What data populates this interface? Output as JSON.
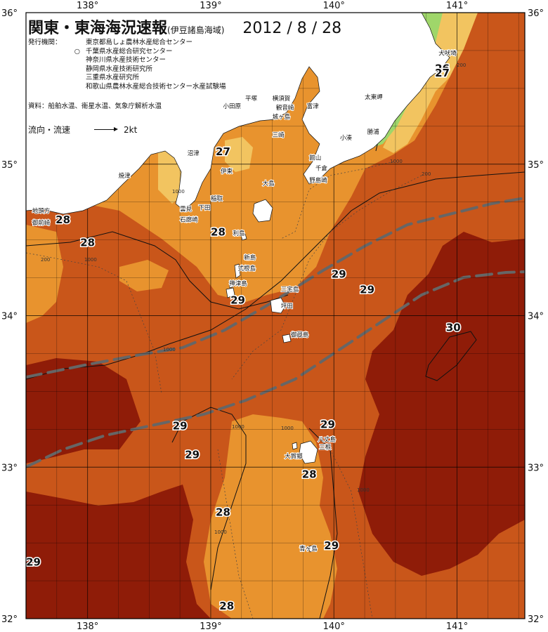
{
  "title": "関東・東海海況速報",
  "subtitle": "(伊豆諸島海域)",
  "date": "2012 / 8 / 28",
  "organizations_label": "発行機関：",
  "organizations": [
    "東京都島しょ農林水産総合センター",
    "千葉県水産総合研究センター",
    "神奈川県水産技術センター",
    "静岡県水産技術研究所",
    "三重県水産研究所",
    "和歌山県農林水産総合技術センター水産試験場"
  ],
  "source": "資料：船舶水温、衛星水温、気象庁解析水温",
  "flow_label": "流向・流速",
  "flow_unit": "2kt",
  "lon_labels": [
    "138°",
    "139°",
    "140°",
    "141°"
  ],
  "lat_labels": [
    "36°",
    "35°",
    "34°",
    "33°",
    "32°"
  ],
  "colors": {
    "t26": "#9fd66a",
    "t27": "#f2c460",
    "t28": "#e8932e",
    "t29": "#c9561a",
    "t30": "#8f1c08",
    "land": "#ffffff",
    "kuroshio_axis": "#666666"
  },
  "isotherm_labels": [
    {
      "value": "26",
      "lon": 140.88,
      "lat": 35.63
    },
    {
      "value": "27",
      "lon": 140.88,
      "lat": 35.6
    },
    {
      "value": "27",
      "lon": 139.1,
      "lat": 35.08
    },
    {
      "value": "28",
      "lon": 137.8,
      "lat": 34.63
    },
    {
      "value": "28",
      "lon": 138.0,
      "lat": 34.48
    },
    {
      "value": "28",
      "lon": 139.06,
      "lat": 34.55
    },
    {
      "value": "29",
      "lon": 140.04,
      "lat": 34.27
    },
    {
      "value": "29",
      "lon": 140.27,
      "lat": 34.17
    },
    {
      "value": "29",
      "lon": 139.22,
      "lat": 34.1
    },
    {
      "value": "30",
      "lon": 140.97,
      "lat": 33.92
    },
    {
      "value": "29",
      "lon": 138.75,
      "lat": 33.27
    },
    {
      "value": "29",
      "lon": 138.85,
      "lat": 33.08
    },
    {
      "value": "29",
      "lon": 139.95,
      "lat": 33.28
    },
    {
      "value": "28",
      "lon": 139.8,
      "lat": 32.95
    },
    {
      "value": "28",
      "lon": 139.1,
      "lat": 32.7
    },
    {
      "value": "29",
      "lon": 139.98,
      "lat": 32.48
    },
    {
      "value": "29",
      "lon": 137.56,
      "lat": 32.37
    },
    {
      "value": "28",
      "lon": 139.13,
      "lat": 32.08
    }
  ],
  "place_labels": [
    {
      "name": "犬吠埼",
      "lon": 140.85,
      "lat": 35.72
    },
    {
      "name": "太東岬",
      "lon": 140.25,
      "lat": 35.43
    },
    {
      "name": "勝浦",
      "lon": 140.27,
      "lat": 35.2
    },
    {
      "name": "小湊",
      "lon": 140.05,
      "lat": 35.16
    },
    {
      "name": "平塚",
      "lon": 139.28,
      "lat": 35.42
    },
    {
      "name": "横須賀",
      "lon": 139.5,
      "lat": 35.42
    },
    {
      "name": "観音崎",
      "lon": 139.53,
      "lat": 35.36
    },
    {
      "name": "富津",
      "lon": 139.78,
      "lat": 35.37
    },
    {
      "name": "小田原",
      "lon": 139.1,
      "lat": 35.37
    },
    {
      "name": "城ヶ島",
      "lon": 139.5,
      "lat": 35.3
    },
    {
      "name": "三崎",
      "lon": 139.5,
      "lat": 35.18
    },
    {
      "name": "館山",
      "lon": 139.8,
      "lat": 35.03
    },
    {
      "name": "千倉",
      "lon": 139.85,
      "lat": 34.96
    },
    {
      "name": "野島崎",
      "lon": 139.8,
      "lat": 34.88
    },
    {
      "name": "伊東",
      "lon": 139.08,
      "lat": 34.94
    },
    {
      "name": "沼津",
      "lon": 138.81,
      "lat": 35.06
    },
    {
      "name": "焼津",
      "lon": 138.25,
      "lat": 34.91
    },
    {
      "name": "稲取",
      "lon": 139.0,
      "lat": 34.76
    },
    {
      "name": "下田",
      "lon": 138.9,
      "lat": 34.7
    },
    {
      "name": "雲見",
      "lon": 138.75,
      "lat": 34.69
    },
    {
      "name": "石廊崎",
      "lon": 138.75,
      "lat": 34.62
    },
    {
      "name": "地頭方",
      "lon": 137.55,
      "lat": 34.68
    },
    {
      "name": "御前崎",
      "lon": 137.55,
      "lat": 34.6
    },
    {
      "name": "大島",
      "lon": 139.42,
      "lat": 34.86
    },
    {
      "name": "利島",
      "lon": 139.18,
      "lat": 34.53
    },
    {
      "name": "新島",
      "lon": 139.27,
      "lat": 34.37
    },
    {
      "name": "式根島",
      "lon": 139.22,
      "lat": 34.3
    },
    {
      "name": "神津島",
      "lon": 139.15,
      "lat": 34.2
    },
    {
      "name": "三宅島",
      "lon": 139.57,
      "lat": 34.16
    },
    {
      "name": "坪田",
      "lon": 139.57,
      "lat": 34.05
    },
    {
      "name": "御蔵島",
      "lon": 139.65,
      "lat": 33.86
    },
    {
      "name": "八丈島",
      "lon": 139.87,
      "lat": 33.17
    },
    {
      "name": "三根",
      "lon": 139.88,
      "lat": 33.12
    },
    {
      "name": "大賀郷",
      "lon": 139.6,
      "lat": 33.06
    },
    {
      "name": "青ヶ島",
      "lon": 139.72,
      "lat": 32.45
    }
  ],
  "depth_labels": [
    "200",
    "1000",
    "200",
    "1000",
    "200",
    "1000",
    "1000",
    "1000",
    "1000",
    "1000",
    "1000"
  ]
}
